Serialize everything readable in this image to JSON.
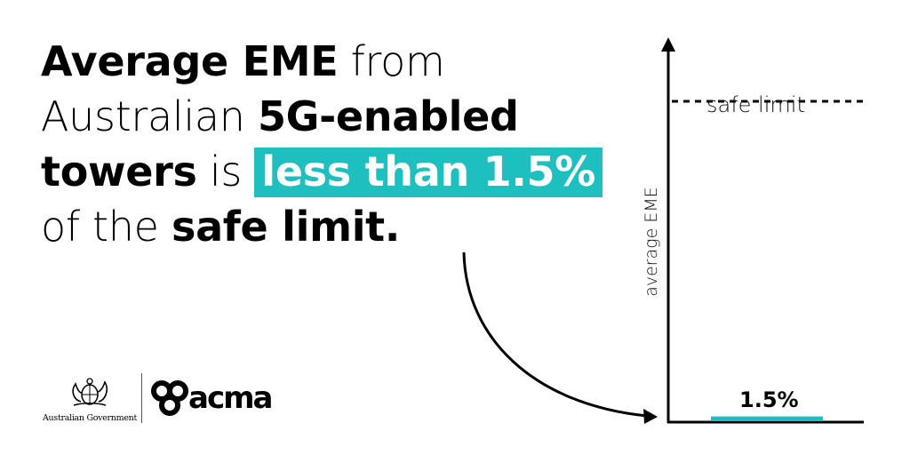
{
  "headline": {
    "line1_bold": "Average EME",
    "line1_light": " from",
    "line2_light": "Australian ",
    "line2_bold": "5G-enabled",
    "line3_bold": "towers",
    "line3_light": " is ",
    "line3_highlight": "less than 1.5%",
    "line4_light": "of the ",
    "line4_bold": "safe limit."
  },
  "colors": {
    "accent": "#1dbfbf",
    "text": "#000000",
    "background": "#ffffff"
  },
  "chart_data": {
    "type": "bar",
    "ylabel": "average EME",
    "reference_line": {
      "label": "safe limit",
      "value": 100,
      "style": "dashed"
    },
    "values": [
      1.5
    ],
    "value_labels": [
      "1.5%"
    ],
    "ylim": [
      0,
      115
    ],
    "grid": false
  },
  "logos": {
    "government_text": "Australian Government",
    "government_icon": "coat-of-arms-icon",
    "acma_text": "acma",
    "acma_icon": "acma-trefoil-icon"
  }
}
